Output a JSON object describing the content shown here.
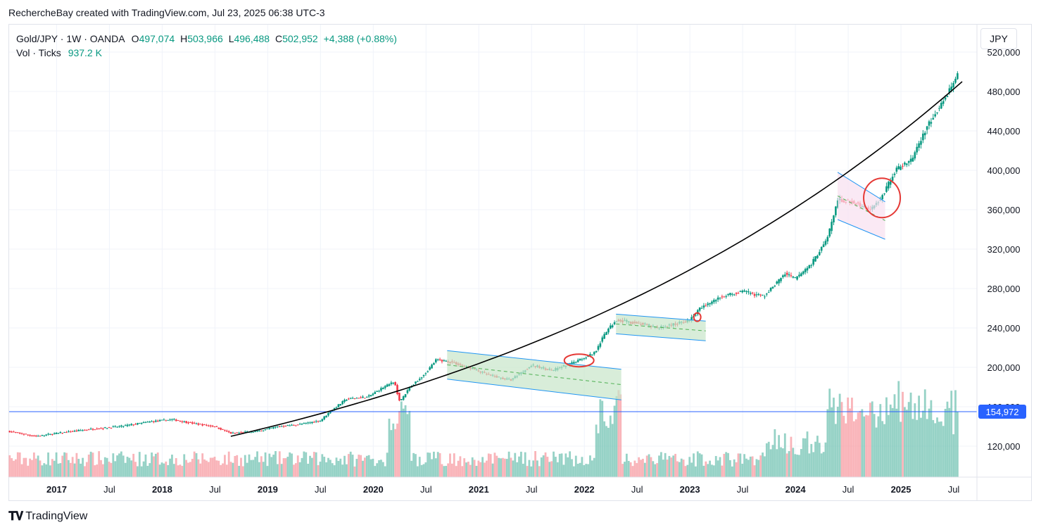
{
  "header": {
    "attribution": "RechercheBay created with TradingView.com, Jul 23, 2025 06:38 UTC-3"
  },
  "legend": {
    "symbol": "Gold/JPY · 1W · OANDA",
    "o_label": "O",
    "o_value": "497,074",
    "h_label": "H",
    "h_value": "503,966",
    "l_label": "L",
    "l_value": "496,488",
    "c_label": "C",
    "c_value": "502,952",
    "change": "+4,388 (+0.88%)",
    "vol_label": "Vol · Ticks",
    "vol_value": "937.2 K"
  },
  "currency_button": "JPY",
  "footer": {
    "logo_text": "TradingView"
  },
  "chart_data": {
    "type": "candlestick",
    "title": "",
    "xlabel": "",
    "ylabel": "",
    "ylim": [
      80000,
      520000
    ],
    "y_tick_labels": [
      "120,000",
      "160,000",
      "200,000",
      "240,000",
      "280,000",
      "320,000",
      "360,000",
      "400,000",
      "440,000",
      "480,000",
      "520,000"
    ],
    "y_ticks": [
      120000,
      160000,
      200000,
      240000,
      280000,
      320000,
      360000,
      400000,
      440000,
      480000,
      520000
    ],
    "x_tick_labels": [
      {
        "label": "2017",
        "t": 2017.0,
        "bold": true
      },
      {
        "label": "Jul",
        "t": 2017.5,
        "bold": false
      },
      {
        "label": "2018",
        "t": 2018.0,
        "bold": true
      },
      {
        "label": "Jul",
        "t": 2018.5,
        "bold": false
      },
      {
        "label": "2019",
        "t": 2019.0,
        "bold": true
      },
      {
        "label": "Jul",
        "t": 2019.5,
        "bold": false
      },
      {
        "label": "2020",
        "t": 2020.0,
        "bold": true
      },
      {
        "label": "Jul",
        "t": 2020.5,
        "bold": false
      },
      {
        "label": "2021",
        "t": 2021.0,
        "bold": true
      },
      {
        "label": "Jul",
        "t": 2021.5,
        "bold": false
      },
      {
        "label": "2022",
        "t": 2022.0,
        "bold": true
      },
      {
        "label": "Jul",
        "t": 2022.5,
        "bold": false
      },
      {
        "label": "2023",
        "t": 2023.0,
        "bold": true
      },
      {
        "label": "Jul",
        "t": 2023.5,
        "bold": false
      },
      {
        "label": "2024",
        "t": 2024.0,
        "bold": true
      },
      {
        "label": "Jul",
        "t": 2024.5,
        "bold": false
      },
      {
        "label": "2025",
        "t": 2025.0,
        "bold": true
      },
      {
        "label": "Jul",
        "t": 2025.5,
        "bold": false
      }
    ],
    "price_path": [
      [
        2016.55,
        135000
      ],
      [
        2016.8,
        130000
      ],
      [
        2017.0,
        133000
      ],
      [
        2017.3,
        137000
      ],
      [
        2017.6,
        140000
      ],
      [
        2017.9,
        145000
      ],
      [
        2018.1,
        147000
      ],
      [
        2018.3,
        143000
      ],
      [
        2018.5,
        140000
      ],
      [
        2018.65,
        133000
      ],
      [
        2018.9,
        135000
      ],
      [
        2019.1,
        140000
      ],
      [
        2019.3,
        142000
      ],
      [
        2019.5,
        146000
      ],
      [
        2019.6,
        156000
      ],
      [
        2019.75,
        168000
      ],
      [
        2019.95,
        170000
      ],
      [
        2020.1,
        180000
      ],
      [
        2020.2,
        185000
      ],
      [
        2020.25,
        165000
      ],
      [
        2020.35,
        180000
      ],
      [
        2020.5,
        195000
      ],
      [
        2020.6,
        208000
      ],
      [
        2020.75,
        205000
      ],
      [
        2020.9,
        200000
      ],
      [
        2021.1,
        192000
      ],
      [
        2021.3,
        187000
      ],
      [
        2021.5,
        202000
      ],
      [
        2021.7,
        197000
      ],
      [
        2021.9,
        205000
      ],
      [
        2022.1,
        215000
      ],
      [
        2022.2,
        235000
      ],
      [
        2022.3,
        248000
      ],
      [
        2022.5,
        245000
      ],
      [
        2022.7,
        240000
      ],
      [
        2022.9,
        245000
      ],
      [
        2023.0,
        248000
      ],
      [
        2023.1,
        260000
      ],
      [
        2023.3,
        272000
      ],
      [
        2023.5,
        277000
      ],
      [
        2023.7,
        272000
      ],
      [
        2023.9,
        295000
      ],
      [
        2024.0,
        290000
      ],
      [
        2024.15,
        305000
      ],
      [
        2024.3,
        330000
      ],
      [
        2024.4,
        370000
      ],
      [
        2024.55,
        368000
      ],
      [
        2024.7,
        360000
      ],
      [
        2024.8,
        370000
      ],
      [
        2024.95,
        400000
      ],
      [
        2025.1,
        410000
      ],
      [
        2025.25,
        445000
      ],
      [
        2025.4,
        470000
      ],
      [
        2025.5,
        490000
      ],
      [
        2025.55,
        502952
      ]
    ],
    "trend_curve": {
      "t_start": 2018.65,
      "v_start": 130000,
      "t_end": 2025.58,
      "v_end": 490000
    },
    "horizontal_line": {
      "value": 154972,
      "label": "154,972",
      "color": "#2962ff"
    },
    "channels": [
      {
        "t_start": 2020.7,
        "t_end": 2022.35,
        "top_start": 217000,
        "top_end": 198000,
        "bot_start": 188000,
        "bot_end": 167000,
        "fill": "#c8e6c9",
        "stroke": "#2196f3"
      },
      {
        "t_start": 2022.3,
        "t_end": 2023.15,
        "top_start": 254000,
        "top_end": 247000,
        "bot_start": 234000,
        "bot_end": 227000,
        "fill": "#c8e6c9",
        "stroke": "#2196f3"
      },
      {
        "t_start": 2024.4,
        "t_end": 2024.85,
        "top_start": 398000,
        "top_end": 368000,
        "bot_start": 350000,
        "bot_end": 330000,
        "fill": "#f8e0f0",
        "stroke": "#2196f3"
      }
    ],
    "highlight_circles": [
      {
        "t": 2021.95,
        "v": 207000,
        "color": "#e53935"
      },
      {
        "t": 2023.07,
        "v": 251000,
        "color": "#e53935"
      },
      {
        "t": 2024.82,
        "v": 372000,
        "color": "#e53935"
      }
    ],
    "colors": {
      "up": "#089981",
      "down": "#f23645",
      "vol_up": "#7cc7b8",
      "vol_down": "#f7a1a8",
      "grid": "#f0f3fa",
      "trend": "#000000"
    }
  }
}
